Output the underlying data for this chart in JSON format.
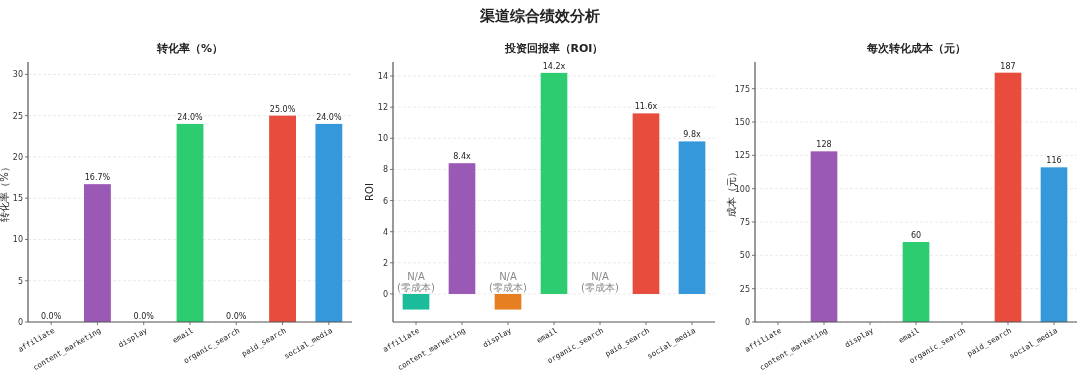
{
  "chart_data": [
    {
      "type": "other",
      "title": "渠道综合绩效分析"
    },
    {
      "type": "bar",
      "title": "转化率（%）",
      "ylabel": "转化率（%）",
      "categories": [
        "affiliate",
        "content_marketing",
        "display",
        "email",
        "organic_search",
        "paid_search",
        "social_media"
      ],
      "values": [
        0,
        16.7,
        0,
        24,
        0,
        25,
        24
      ],
      "value_labels": [
        "0.0%",
        "16.7%",
        "0.0%",
        "24.0%",
        "0.0%",
        "25.0%",
        "24.0%"
      ],
      "colors": [
        "#1abc9c",
        "#9b59b6",
        "#e67e22",
        "#2ecc71",
        "#34495e",
        "#e74c3c",
        "#3498db"
      ],
      "ylim": [
        0,
        31.5
      ],
      "yticks": [
        0,
        5,
        10,
        15,
        20,
        25,
        30
      ],
      "grid": "y"
    },
    {
      "type": "bar",
      "title": "投资回报率（ROI）",
      "ylabel": "ROI",
      "categories": [
        "affiliate",
        "content_marketing",
        "display",
        "email",
        "organic_search",
        "paid_search",
        "social_media"
      ],
      "values": [
        -1,
        8.4,
        -1,
        14.2,
        null,
        11.6,
        9.8
      ],
      "value_labels": [
        "N/A\n(零成本)",
        "8.4x",
        "N/A\n(零成本)",
        "14.2x",
        "N/A\n(零成本)",
        "11.6x",
        "9.8x"
      ],
      "colors": [
        "#1abc9c",
        "#9b59b6",
        "#e67e22",
        "#2ecc71",
        "#34495e",
        "#e74c3c",
        "#3498db"
      ],
      "ylim": [
        -1.8,
        14.9
      ],
      "yticks": [
        0,
        2,
        4,
        6,
        8,
        10,
        12,
        14
      ],
      "grid": "y"
    },
    {
      "type": "bar",
      "title": "每次转化成本（元）",
      "ylabel": "成本（元）",
      "categories": [
        "affiliate",
        "content_marketing",
        "display",
        "email",
        "organic_search",
        "paid_search",
        "social_media"
      ],
      "values": [
        null,
        128,
        null,
        60,
        null,
        187,
        116
      ],
      "data_labels": true,
      "colors": [
        "#1abc9c",
        "#9b59b6",
        "#e67e22",
        "#2ecc71",
        "#34495e",
        "#e74c3c",
        "#3498db"
      ],
      "ylim": [
        0,
        195
      ],
      "yticks": [
        0,
        25,
        50,
        75,
        100,
        125,
        150,
        175
      ],
      "grid": "y"
    }
  ]
}
